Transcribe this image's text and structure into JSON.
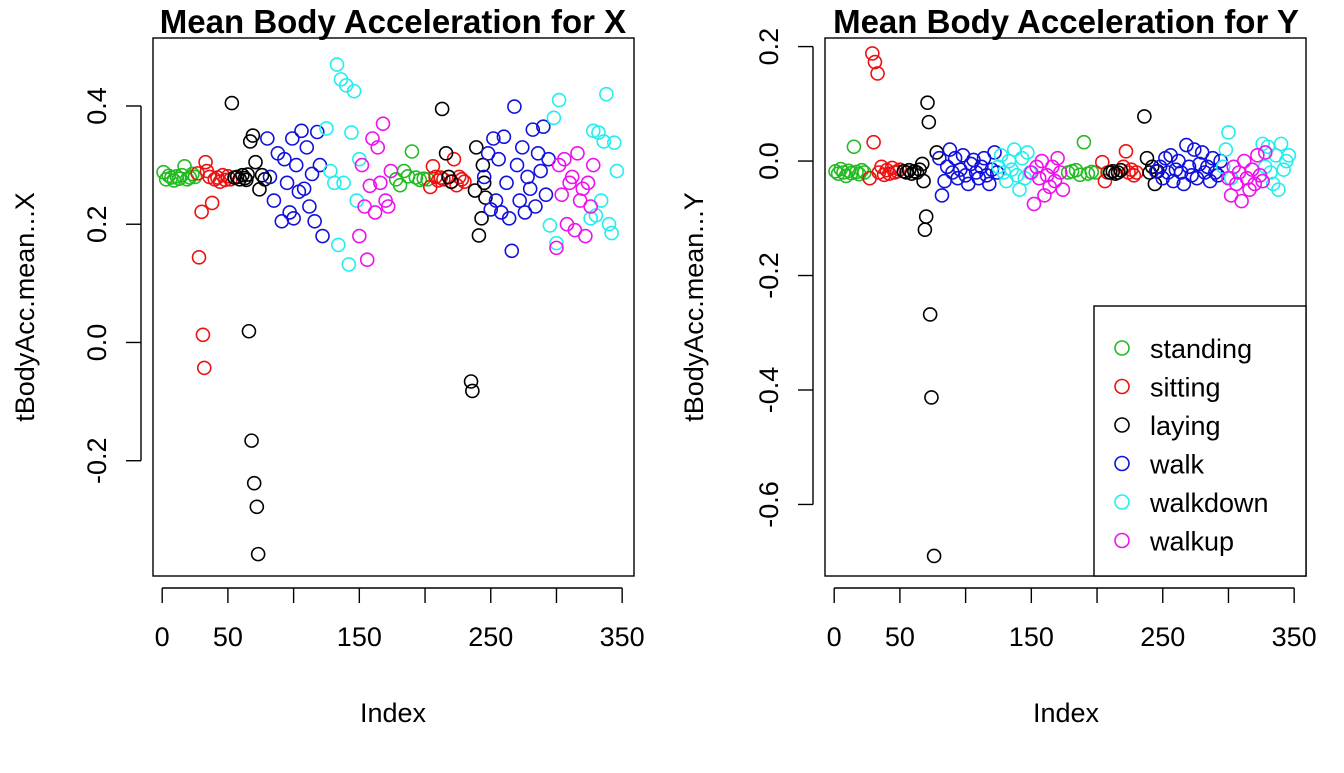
{
  "palette": {
    "standing": "#22bb22",
    "sitting": "#ee1111",
    "laying": "#000000",
    "walk": "#1111dd",
    "walkdown": "#22eeee",
    "walkup": "#ee11ee"
  },
  "chart_data": [
    {
      "type": "scatter",
      "title": "Mean Body Acceleration for X",
      "xlabel": "Index",
      "ylabel": "tBodyAcc.mean...X",
      "xlim": [
        -7,
        359
      ],
      "ylim": [
        -0.395,
        0.515
      ],
      "x_ticks": [
        0,
        50,
        100,
        150,
        200,
        250,
        300,
        350
      ],
      "x_tick_labels": [
        "0",
        "50",
        "",
        "150",
        "",
        "250",
        "",
        "350"
      ],
      "y_ticks": [
        -0.2,
        0.0,
        0.2,
        0.4
      ],
      "y_tick_labels": [
        "-0.2",
        "0.0",
        "0.2",
        "0.4"
      ],
      "grid": false,
      "legend": null,
      "series": [
        {
          "name": "standing",
          "x": [
            1,
            3,
            5,
            7,
            9,
            11,
            13,
            15,
            17,
            19,
            21,
            23,
            25,
            178,
            181,
            184,
            187,
            190,
            193,
            196,
            199,
            202
          ],
          "y": [
            0.288,
            0.276,
            0.282,
            0.279,
            0.274,
            0.281,
            0.277,
            0.283,
            0.298,
            0.276,
            0.279,
            0.285,
            0.28,
            0.276,
            0.266,
            0.29,
            0.281,
            0.323,
            0.279,
            0.275,
            0.277,
            0.276
          ]
        },
        {
          "name": "sitting",
          "x": [
            27,
            28,
            30,
            31,
            32,
            33,
            34,
            36,
            38,
            40,
            42,
            44,
            46,
            48,
            50,
            52,
            204,
            206,
            208,
            210,
            212,
            214,
            220,
            222,
            224,
            226,
            228,
            230
          ],
          "y": [
            0.286,
            0.144,
            0.221,
            0.013,
            -0.043,
            0.305,
            0.29,
            0.28,
            0.236,
            0.276,
            0.279,
            0.272,
            0.283,
            0.275,
            0.281,
            0.276,
            0.263,
            0.298,
            0.28,
            0.274,
            0.279,
            0.276,
            0.272,
            0.31,
            0.266,
            0.28,
            0.276,
            0.272
          ]
        },
        {
          "name": "laying",
          "x": [
            53,
            55,
            57,
            59,
            61,
            63,
            64,
            65,
            66,
            67,
            68,
            69,
            70,
            71,
            72,
            73,
            74,
            76,
            78,
            213,
            216,
            218,
            220,
            235,
            236,
            238,
            239,
            241,
            243,
            244,
            245,
            246
          ],
          "y": [
            0.405,
            0.279,
            0.28,
            0.276,
            0.283,
            0.278,
            0.275,
            0.284,
            0.019,
            0.34,
            -0.166,
            0.35,
            -0.238,
            0.305,
            -0.278,
            -0.358,
            0.259,
            0.283,
            0.276,
            0.395,
            0.32,
            0.28,
            0.272,
            -0.066,
            -0.082,
            0.257,
            0.33,
            0.181,
            0.21,
            0.3,
            0.27,
            0.245
          ]
        },
        {
          "name": "walk",
          "x": [
            80,
            82,
            85,
            88,
            91,
            93,
            95,
            97,
            99,
            100,
            102,
            104,
            106,
            108,
            110,
            112,
            114,
            116,
            118,
            120,
            122,
            245,
            248,
            250,
            252,
            254,
            256,
            258,
            260,
            262,
            264,
            266,
            268,
            270,
            272,
            274,
            276,
            278,
            280,
            282,
            284,
            286,
            288,
            290,
            292,
            294
          ],
          "y": [
            0.345,
            0.28,
            0.24,
            0.32,
            0.205,
            0.31,
            0.27,
            0.22,
            0.345,
            0.21,
            0.3,
            0.255,
            0.358,
            0.26,
            0.33,
            0.23,
            0.285,
            0.205,
            0.356,
            0.3,
            0.18,
            0.28,
            0.32,
            0.225,
            0.345,
            0.24,
            0.31,
            0.22,
            0.348,
            0.27,
            0.21,
            0.155,
            0.399,
            0.3,
            0.24,
            0.33,
            0.22,
            0.28,
            0.26,
            0.36,
            0.23,
            0.32,
            0.29,
            0.365,
            0.25,
            0.31
          ]
        },
        {
          "name": "walkdown",
          "x": [
            125,
            128,
            131,
            133,
            134,
            136,
            138,
            140,
            142,
            144,
            146,
            148,
            150,
            295,
            298,
            300,
            302,
            326,
            328,
            330,
            332,
            334,
            336,
            338,
            340,
            342,
            344,
            346
          ],
          "y": [
            0.362,
            0.29,
            0.27,
            0.47,
            0.165,
            0.445,
            0.27,
            0.435,
            0.132,
            0.355,
            0.425,
            0.24,
            0.31,
            0.198,
            0.38,
            0.168,
            0.41,
            0.21,
            0.358,
            0.215,
            0.355,
            0.24,
            0.34,
            0.42,
            0.2,
            0.185,
            0.338,
            0.29
          ]
        },
        {
          "name": "walkup",
          "x": [
            150,
            152,
            154,
            156,
            158,
            160,
            162,
            164,
            166,
            168,
            170,
            172,
            174,
            300,
            302,
            304,
            306,
            308,
            310,
            312,
            314,
            316,
            318,
            320,
            322,
            324,
            326,
            328
          ],
          "y": [
            0.18,
            0.3,
            0.23,
            0.14,
            0.265,
            0.345,
            0.22,
            0.33,
            0.27,
            0.37,
            0.24,
            0.23,
            0.29,
            0.16,
            0.3,
            0.25,
            0.31,
            0.2,
            0.27,
            0.28,
            0.19,
            0.32,
            0.24,
            0.26,
            0.18,
            0.27,
            0.23,
            0.3
          ]
        }
      ]
    },
    {
      "type": "scatter",
      "title": "Mean Body Acceleration for Y",
      "xlabel": "Index",
      "ylabel": "tBodyAcc.mean...Y",
      "xlim": [
        -7,
        359
      ],
      "ylim": [
        -0.725,
        0.215
      ],
      "x_ticks": [
        0,
        50,
        100,
        150,
        200,
        250,
        300,
        350
      ],
      "x_tick_labels": [
        "0",
        "50",
        "",
        "150",
        "",
        "250",
        "",
        "350"
      ],
      "y_ticks": [
        -0.6,
        -0.4,
        -0.2,
        0.0,
        0.2
      ],
      "y_tick_labels": [
        "-0.6",
        "-0.4",
        "-0.2",
        "0.0",
        "0.2"
      ],
      "grid": false,
      "legend": "bottom-right",
      "series": [
        {
          "name": "standing",
          "x": [
            1,
            3,
            5,
            7,
            9,
            11,
            13,
            15,
            17,
            19,
            21,
            23,
            178,
            181,
            184,
            187,
            190,
            193,
            196,
            199
          ],
          "y": [
            -0.018,
            -0.022,
            -0.014,
            -0.02,
            -0.026,
            -0.017,
            -0.021,
            0.025,
            -0.019,
            -0.023,
            -0.016,
            -0.02,
            -0.02,
            -0.018,
            -0.016,
            -0.024,
            0.033,
            -0.022,
            -0.019,
            -0.02
          ]
        },
        {
          "name": "sitting",
          "x": [
            27,
            29,
            30,
            31,
            33,
            34,
            36,
            38,
            40,
            42,
            44,
            46,
            48,
            50,
            204,
            206,
            208,
            220,
            222,
            224,
            226,
            228,
            230
          ],
          "y": [
            -0.03,
            0.188,
            0.033,
            0.173,
            0.153,
            -0.02,
            -0.01,
            -0.024,
            -0.016,
            -0.022,
            -0.012,
            -0.02,
            -0.018,
            -0.015,
            -0.002,
            -0.035,
            -0.02,
            -0.01,
            0.017,
            -0.02,
            -0.015,
            -0.025,
            -0.02
          ]
        },
        {
          "name": "laying",
          "x": [
            53,
            55,
            57,
            59,
            61,
            63,
            65,
            67,
            68,
            69,
            70,
            71,
            72,
            73,
            74,
            76,
            78,
            210,
            212,
            214,
            216,
            218,
            236,
            238,
            240,
            242,
            244,
            246
          ],
          "y": [
            -0.018,
            -0.02,
            -0.016,
            -0.022,
            -0.018,
            -0.02,
            -0.015,
            -0.005,
            -0.035,
            -0.12,
            -0.097,
            0.102,
            0.068,
            -0.268,
            -0.413,
            -0.69,
            0.015,
            -0.02,
            -0.018,
            -0.022,
            -0.02,
            -0.016,
            0.078,
            0.005,
            -0.02,
            -0.01,
            -0.04,
            -0.018
          ]
        },
        {
          "name": "walk",
          "x": [
            80,
            82,
            84,
            86,
            88,
            90,
            92,
            94,
            96,
            98,
            100,
            102,
            104,
            106,
            108,
            110,
            112,
            114,
            116,
            118,
            120,
            122,
            124,
            245,
            248,
            250,
            252,
            254,
            256,
            258,
            260,
            262,
            264,
            266,
            268,
            270,
            272,
            274,
            276,
            278,
            280,
            282,
            284,
            286,
            288,
            290,
            292,
            294
          ],
          "y": [
            0.005,
            -0.06,
            -0.035,
            -0.01,
            0.02,
            -0.02,
            0.005,
            -0.03,
            -0.015,
            0.01,
            -0.025,
            -0.04,
            -0.005,
            0.002,
            -0.02,
            -0.03,
            -0.01,
            0.005,
            -0.025,
            -0.04,
            -0.015,
            0.015,
            -0.02,
            -0.018,
            -0.01,
            -0.03,
            0.005,
            -0.02,
            0.01,
            -0.035,
            -0.015,
            0.0,
            -0.02,
            -0.04,
            0.028,
            -0.01,
            -0.025,
            0.02,
            -0.03,
            -0.005,
            0.015,
            -0.02,
            -0.01,
            -0.035,
            0.005,
            -0.02,
            -0.025,
            0.0
          ]
        },
        {
          "name": "walkdown",
          "x": [
            125,
            127,
            129,
            131,
            133,
            135,
            137,
            139,
            141,
            143,
            145,
            147,
            149,
            296,
            298,
            300,
            302,
            326,
            328,
            330,
            332,
            334,
            336,
            338,
            340,
            342,
            344,
            346
          ],
          "y": [
            -0.01,
            0.01,
            -0.02,
            -0.035,
            0.0,
            -0.015,
            0.02,
            -0.025,
            -0.05,
            0.005,
            -0.03,
            0.015,
            -0.02,
            -0.01,
            0.02,
            0.05,
            -0.03,
            0.03,
            -0.01,
            0.025,
            -0.02,
            -0.04,
            0.01,
            -0.05,
            0.03,
            -0.015,
            0.0,
            0.01
          ]
        },
        {
          "name": "walkup",
          "x": [
            150,
            152,
            154,
            156,
            158,
            160,
            162,
            164,
            166,
            168,
            170,
            172,
            174,
            300,
            302,
            304,
            306,
            308,
            310,
            312,
            314,
            316,
            318,
            320,
            322,
            324,
            326,
            328
          ],
          "y": [
            -0.02,
            -0.075,
            -0.01,
            -0.03,
            0.0,
            -0.06,
            -0.025,
            -0.045,
            -0.01,
            -0.035,
            0.005,
            -0.02,
            -0.05,
            -0.03,
            -0.06,
            -0.01,
            -0.04,
            -0.02,
            -0.07,
            0.0,
            -0.03,
            -0.05,
            -0.015,
            -0.04,
            0.01,
            -0.025,
            -0.035,
            0.015
          ]
        }
      ]
    }
  ]
}
